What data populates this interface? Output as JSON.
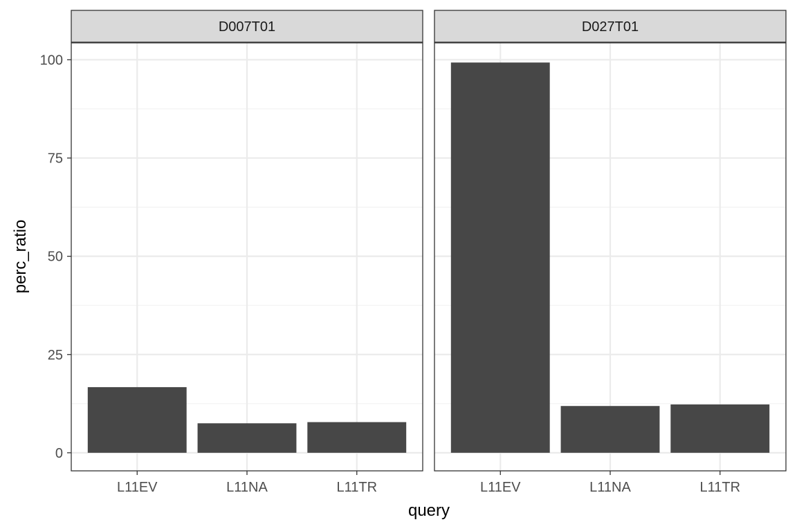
{
  "chart_data": {
    "type": "bar",
    "xlabel": "query",
    "ylabel": "perc_ratio",
    "ylim": [
      -4.6,
      104.3
    ],
    "yticks": [
      0,
      25,
      50,
      75,
      100
    ],
    "categories": [
      "L11EV",
      "L11NA",
      "L11TR"
    ],
    "grid": true,
    "colors": {
      "bar": "#474747",
      "grid_major": "#ebebeb",
      "grid_minor": "#f2f2f2",
      "strip_bg": "#d9d9d9",
      "border": "#333333"
    },
    "panels": [
      {
        "name": "D007T01",
        "values": [
          16.7,
          7.5,
          7.8
        ]
      },
      {
        "name": "D027T01",
        "values": [
          99.3,
          11.9,
          12.3
        ]
      }
    ]
  }
}
